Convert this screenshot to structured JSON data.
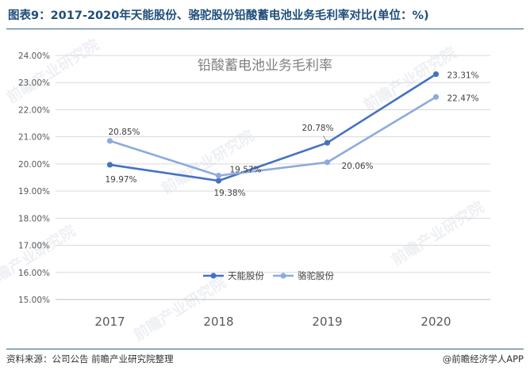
{
  "figure_title": "图表9：2017-2020年天能股份、骆驼股份铅酸蓄电池业务毛利率对比(单位：%)",
  "footer": {
    "source": "资料来源：公司公告 前瞻产业研究院整理",
    "brand": "@前瞻经济学人APP"
  },
  "watermark_text": "前瞻产业研究院",
  "colors": {
    "title": "#1f4e79",
    "series_1": "#4472c4",
    "series_2": "#8eaadb",
    "grid": "#d9d9d9",
    "tick": "#595959"
  },
  "chart_data": {
    "type": "line",
    "title": "铅酸蓄电池业务毛利率",
    "categories": [
      "2017",
      "2018",
      "2019",
      "2020"
    ],
    "y_ticks": [
      "15.00%",
      "16.00%",
      "17.00%",
      "18.00%",
      "19.00%",
      "20.00%",
      "21.00%",
      "22.00%",
      "23.00%",
      "24.00%"
    ],
    "ylim": [
      15,
      24
    ],
    "grid": "horizontal",
    "legend_position": "bottom-center",
    "series": [
      {
        "name": "天能股份",
        "values": [
          19.97,
          19.38,
          20.78,
          23.31
        ],
        "labels": [
          "19.97%",
          "19.38%",
          "20.78%",
          "23.31%"
        ]
      },
      {
        "name": "骆驼股份",
        "values": [
          20.85,
          19.57,
          20.06,
          22.47
        ],
        "labels": [
          "20.85%",
          "19.57%",
          "20.06%",
          "22.47%"
        ]
      }
    ]
  }
}
